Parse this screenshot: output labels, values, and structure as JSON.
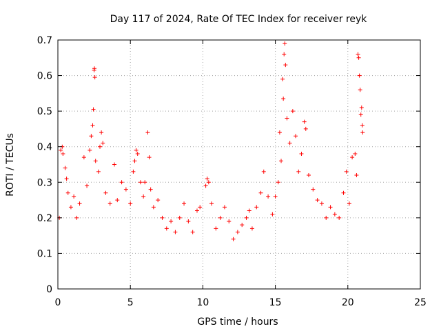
{
  "chart_data": {
    "type": "scatter",
    "title": "Day 117 of 2024, Rate Of TEC Index for receiver reyk",
    "xlabel": "GPS time / hours",
    "ylabel": "ROTI / TECUs",
    "xlim": [
      0,
      25
    ],
    "ylim": [
      0,
      0.7
    ],
    "xticks": [
      0,
      5,
      10,
      15,
      20,
      25
    ],
    "yticks": [
      0,
      0.1,
      0.2,
      0.3,
      0.4,
      0.5,
      0.6,
      0.7
    ],
    "grid": true,
    "marker": "+",
    "series": [
      {
        "color": "#ff0000",
        "points": [
          [
            0.1,
            0.2
          ],
          [
            0.2,
            0.39
          ],
          [
            0.3,
            0.4
          ],
          [
            0.35,
            0.38
          ],
          [
            0.5,
            0.34
          ],
          [
            0.6,
            0.31
          ],
          [
            0.7,
            0.27
          ],
          [
            0.9,
            0.23
          ],
          [
            1.1,
            0.26
          ],
          [
            1.3,
            0.2
          ],
          [
            1.5,
            0.24
          ],
          [
            1.8,
            0.37
          ],
          [
            2.0,
            0.29
          ],
          [
            2.2,
            0.39
          ],
          [
            2.3,
            0.43
          ],
          [
            2.4,
            0.46
          ],
          [
            2.45,
            0.505
          ],
          [
            2.5,
            0.615
          ],
          [
            2.52,
            0.62
          ],
          [
            2.55,
            0.595
          ],
          [
            2.6,
            0.36
          ],
          [
            2.8,
            0.33
          ],
          [
            2.9,
            0.4
          ],
          [
            3.0,
            0.44
          ],
          [
            3.1,
            0.41
          ],
          [
            3.3,
            0.27
          ],
          [
            3.6,
            0.24
          ],
          [
            3.9,
            0.35
          ],
          [
            4.1,
            0.25
          ],
          [
            4.4,
            0.3
          ],
          [
            4.7,
            0.28
          ],
          [
            5.0,
            0.24
          ],
          [
            5.2,
            0.33
          ],
          [
            5.3,
            0.36
          ],
          [
            5.4,
            0.39
          ],
          [
            5.5,
            0.38
          ],
          [
            5.7,
            0.3
          ],
          [
            5.9,
            0.26
          ],
          [
            6.0,
            0.3
          ],
          [
            6.2,
            0.44
          ],
          [
            6.3,
            0.37
          ],
          [
            6.4,
            0.28
          ],
          [
            6.6,
            0.23
          ],
          [
            6.9,
            0.25
          ],
          [
            7.2,
            0.2
          ],
          [
            7.5,
            0.17
          ],
          [
            7.8,
            0.19
          ],
          [
            8.1,
            0.16
          ],
          [
            8.4,
            0.2
          ],
          [
            8.7,
            0.24
          ],
          [
            9.0,
            0.19
          ],
          [
            9.3,
            0.16
          ],
          [
            9.6,
            0.22
          ],
          [
            9.8,
            0.23
          ],
          [
            10.2,
            0.29
          ],
          [
            10.3,
            0.31
          ],
          [
            10.4,
            0.3
          ],
          [
            10.6,
            0.24
          ],
          [
            10.9,
            0.17
          ],
          [
            11.2,
            0.2
          ],
          [
            11.5,
            0.23
          ],
          [
            11.8,
            0.19
          ],
          [
            12.1,
            0.14
          ],
          [
            12.4,
            0.16
          ],
          [
            12.7,
            0.18
          ],
          [
            13.0,
            0.2
          ],
          [
            13.2,
            0.22
          ],
          [
            13.4,
            0.17
          ],
          [
            13.7,
            0.23
          ],
          [
            14.0,
            0.27
          ],
          [
            14.2,
            0.33
          ],
          [
            14.5,
            0.26
          ],
          [
            14.8,
            0.21
          ],
          [
            15.0,
            0.26
          ],
          [
            15.2,
            0.3
          ],
          [
            15.3,
            0.44
          ],
          [
            15.4,
            0.36
          ],
          [
            15.5,
            0.59
          ],
          [
            15.55,
            0.535
          ],
          [
            15.6,
            0.66
          ],
          [
            15.65,
            0.69
          ],
          [
            15.7,
            0.63
          ],
          [
            15.8,
            0.48
          ],
          [
            16.0,
            0.41
          ],
          [
            16.2,
            0.5
          ],
          [
            16.4,
            0.43
          ],
          [
            16.6,
            0.33
          ],
          [
            16.8,
            0.38
          ],
          [
            17.0,
            0.47
          ],
          [
            17.1,
            0.45
          ],
          [
            17.3,
            0.32
          ],
          [
            17.6,
            0.28
          ],
          [
            17.9,
            0.25
          ],
          [
            18.2,
            0.24
          ],
          [
            18.5,
            0.2
          ],
          [
            18.8,
            0.23
          ],
          [
            19.1,
            0.21
          ],
          [
            19.4,
            0.2
          ],
          [
            19.7,
            0.27
          ],
          [
            19.9,
            0.33
          ],
          [
            20.1,
            0.24
          ],
          [
            20.3,
            0.37
          ],
          [
            20.5,
            0.38
          ],
          [
            20.6,
            0.32
          ],
          [
            20.7,
            0.66
          ],
          [
            20.75,
            0.65
          ],
          [
            20.8,
            0.6
          ],
          [
            20.85,
            0.56
          ],
          [
            20.9,
            0.49
          ],
          [
            20.95,
            0.51
          ],
          [
            21.0,
            0.46
          ],
          [
            21.02,
            0.44
          ]
        ]
      }
    ]
  }
}
